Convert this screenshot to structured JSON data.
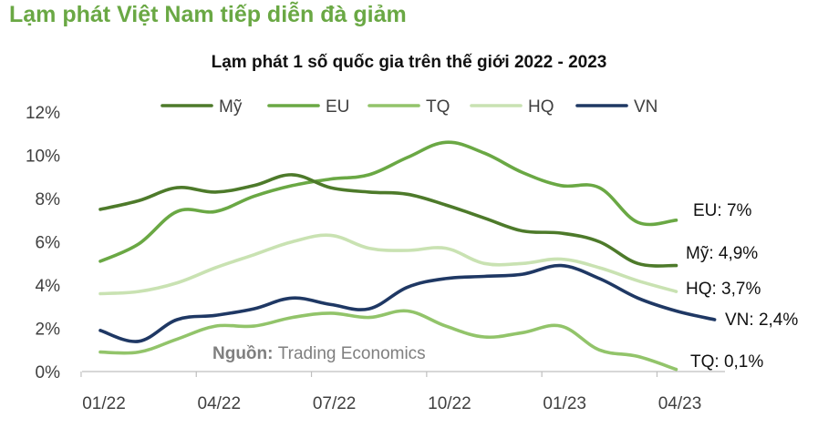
{
  "headline": "Lạm phát Việt Nam tiếp diễn đà giảm",
  "chart_data": {
    "type": "line",
    "title": "Lạm phát 1 số quốc gia trên thế giới 2022 - 2023",
    "xlabel": "",
    "ylabel": "",
    "ylim": [
      0,
      12
    ],
    "yticks": [
      "0%",
      "2%",
      "4%",
      "6%",
      "8%",
      "10%",
      "12%"
    ],
    "x": [
      "01/22",
      "02/22",
      "03/22",
      "04/22",
      "05/22",
      "06/22",
      "07/22",
      "08/22",
      "09/22",
      "10/22",
      "11/22",
      "12/22",
      "01/23",
      "02/23",
      "03/23",
      "04/23",
      "05/23"
    ],
    "xtick_labels": [
      "01/22",
      "04/22",
      "07/22",
      "10/22",
      "01/23",
      "04/23"
    ],
    "xtick_indices": [
      0,
      3,
      6,
      9,
      12,
      15
    ],
    "grid": false,
    "legend_position": "top",
    "series": [
      {
        "name": "Mỹ",
        "color": "#4d7a2a",
        "values": [
          7.5,
          7.9,
          8.5,
          8.3,
          8.6,
          9.1,
          8.5,
          8.3,
          8.2,
          7.7,
          7.1,
          6.5,
          6.4,
          6.0,
          5.0,
          4.9,
          null
        ],
        "end_label": "Mỹ: 4,9%"
      },
      {
        "name": "EU",
        "color": "#6aa844",
        "values": [
          5.1,
          5.9,
          7.4,
          7.4,
          8.1,
          8.6,
          8.9,
          9.1,
          9.9,
          10.6,
          10.1,
          9.2,
          8.6,
          8.5,
          6.9,
          7.0,
          null
        ],
        "end_label": "EU: 7%"
      },
      {
        "name": "TQ",
        "color": "#92c46a",
        "values": [
          0.9,
          0.9,
          1.5,
          2.1,
          2.1,
          2.5,
          2.7,
          2.5,
          2.8,
          2.1,
          1.6,
          1.8,
          2.1,
          1.0,
          0.7,
          0.1,
          null
        ],
        "end_label": "TQ: 0,1%"
      },
      {
        "name": "HQ",
        "color": "#c9e2b2",
        "values": [
          3.6,
          3.7,
          4.1,
          4.8,
          5.4,
          6.0,
          6.3,
          5.7,
          5.6,
          5.7,
          5.0,
          5.0,
          5.2,
          4.8,
          4.2,
          3.7,
          null
        ],
        "end_label": "HQ: 3,7%"
      },
      {
        "name": "VN",
        "color": "#1f3864",
        "values": [
          1.9,
          1.4,
          2.4,
          2.6,
          2.9,
          3.4,
          3.1,
          2.9,
          3.9,
          4.3,
          4.4,
          4.5,
          4.9,
          4.3,
          3.4,
          2.8,
          2.4
        ],
        "end_label": "VN: 2,4%"
      }
    ],
    "source_label": "Nguồn:",
    "source_text": "Trading Economics"
  }
}
